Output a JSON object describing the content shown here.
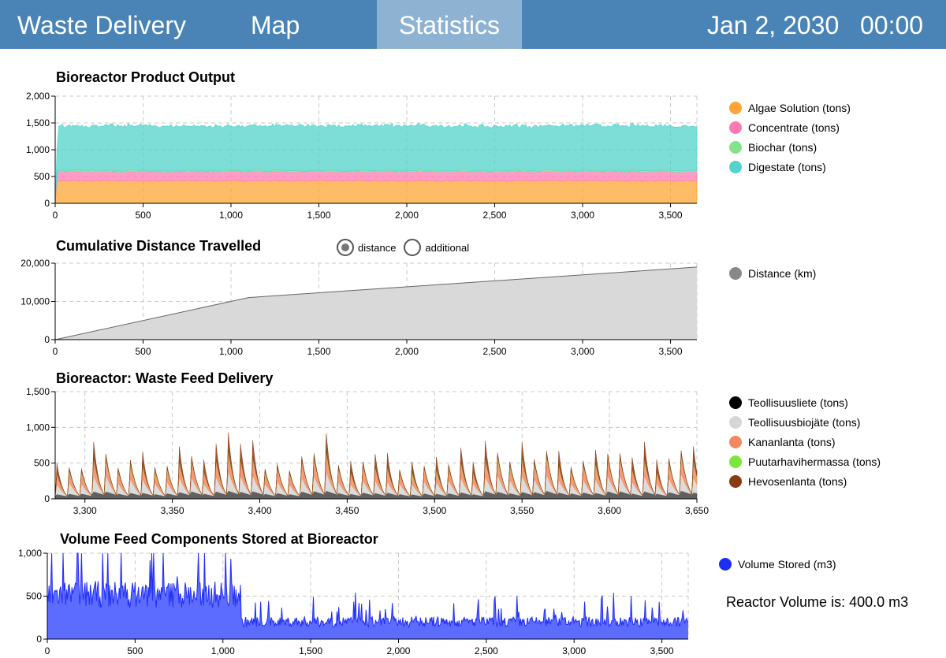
{
  "nav": {
    "items": [
      {
        "label": "Waste Delivery"
      },
      {
        "label": "Map"
      },
      {
        "label": "Statistics",
        "active": true
      }
    ],
    "date": "Jan 2, 2030",
    "time": "00:00",
    "bar_color": "#4a84b7",
    "active_color": "#8eb3d2"
  },
  "radio": {
    "options": [
      {
        "label": "distance",
        "checked": true
      },
      {
        "label": "additional",
        "checked": false
      }
    ]
  },
  "reactor_volume_text": "Reactor Volume is: 400.0 m3",
  "chart_data": [
    {
      "type": "area",
      "title": "Bioreactor  Product Output",
      "stacked": true,
      "xlim": [
        0,
        3650
      ],
      "ylim": [
        0,
        2000
      ],
      "x_ticks": [
        0,
        500,
        1000,
        1500,
        2000,
        2500,
        3000,
        3500
      ],
      "y_ticks": [
        0,
        500,
        1000,
        1500,
        2000
      ],
      "x_tick_labels": [
        "0",
        "500",
        "1,000",
        "1,500",
        "2,000",
        "2,500",
        "3,000",
        "3,500"
      ],
      "y_tick_labels": [
        "0",
        "500",
        "1,000",
        "1,500",
        "2,000"
      ],
      "grid": true,
      "legend_position": "right",
      "x": [
        0,
        10,
        20,
        500,
        1000,
        1500,
        2000,
        2500,
        3000,
        3500,
        3650
      ],
      "series": [
        {
          "name": "Algae Solution (tons)",
          "color": "#ffa533",
          "values": [
            0,
            400,
            420,
            420,
            420,
            420,
            420,
            420,
            420,
            420,
            420
          ]
        },
        {
          "name": "Concentrate (tons)",
          "color": "#ff7ab4",
          "values": [
            0,
            150,
            170,
            170,
            170,
            170,
            170,
            170,
            170,
            170,
            170
          ]
        },
        {
          "name": "Biochar (tons)",
          "color": "#86e18e",
          "values": [
            0,
            20,
            20,
            20,
            20,
            20,
            20,
            20,
            20,
            20,
            20
          ]
        },
        {
          "name": "Digestate (tons)",
          "color": "#52d3cb",
          "values": [
            0,
            450,
            830,
            840,
            830,
            840,
            840,
            830,
            840,
            840,
            830
          ]
        }
      ]
    },
    {
      "type": "area",
      "title": "Cumulative Distance Travelled",
      "xlim": [
        0,
        3650
      ],
      "ylim": [
        0,
        20000
      ],
      "x_ticks": [
        0,
        500,
        1000,
        1500,
        2000,
        2500,
        3000,
        3500
      ],
      "y_ticks": [
        0,
        10000,
        20000
      ],
      "x_tick_labels": [
        "0",
        "500",
        "1,000",
        "1,500",
        "2,000",
        "2,500",
        "3,000",
        "3,500"
      ],
      "y_tick_labels": [
        "0",
        "10,000",
        "20,000"
      ],
      "grid": true,
      "legend_position": "right",
      "x": [
        0,
        1100,
        3650
      ],
      "series": [
        {
          "name": "Distance (km)",
          "color": "#888888",
          "values": [
            0,
            11000,
            19000
          ]
        }
      ]
    },
    {
      "type": "area",
      "title": "Bioreactor:  Waste Feed  Delivery",
      "stacked": true,
      "xlim": [
        3283,
        3650
      ],
      "ylim": [
        0,
        1500
      ],
      "x_ticks": [
        3300,
        3350,
        3400,
        3450,
        3500,
        3550,
        3600,
        3650
      ],
      "y_ticks": [
        0,
        500,
        1000,
        1500
      ],
      "x_tick_labels": [
        "3,300",
        "3,350",
        "3,400",
        "3,450",
        "3,500",
        "3,550",
        "3,600",
        "3,650"
      ],
      "y_tick_labels": [
        "0",
        "500",
        "1,000",
        "1,500"
      ],
      "grid": true,
      "legend_position": "right",
      "period_days": 7,
      "series": [
        {
          "name": "Teollisuusliete (tons)",
          "color": "#000000",
          "values": [
            100,
            150
          ]
        },
        {
          "name": "Teollisuusbiojäte (tons)",
          "color": "#d6d6d6",
          "values": [
            100,
            200
          ]
        },
        {
          "name": "Kananlanta (tons)",
          "color": "#f4885f",
          "values": [
            100,
            200
          ]
        },
        {
          "name": "Puutarhavihermassa (tons)",
          "color": "#7ee63a",
          "values": [
            0,
            30
          ]
        },
        {
          "name": "Hevosenlanta (tons)",
          "color": "#8b3a12",
          "values": [
            0,
            200
          ]
        }
      ]
    },
    {
      "type": "area",
      "title": "Volume Feed Components Stored at Bioreactor",
      "xlim": [
        0,
        3650
      ],
      "ylim": [
        0,
        1000
      ],
      "x_ticks": [
        0,
        500,
        1000,
        1500,
        2000,
        2500,
        3000,
        3500
      ],
      "y_ticks": [
        0,
        500,
        1000
      ],
      "x_tick_labels": [
        "0",
        "500",
        "1,000",
        "1,500",
        "2,000",
        "2,500",
        "3,000",
        "3,500"
      ],
      "y_tick_labels": [
        "0",
        "500",
        "1,000"
      ],
      "grid": true,
      "legend_position": "right",
      "segments": [
        {
          "x_from": 0,
          "x_to": 1100,
          "mean": 520
        },
        {
          "x_from": 1100,
          "x_to": 3650,
          "mean": 200
        }
      ],
      "series": [
        {
          "name": "Volume Stored (m3)",
          "color": "#1f2ef5"
        }
      ]
    }
  ]
}
